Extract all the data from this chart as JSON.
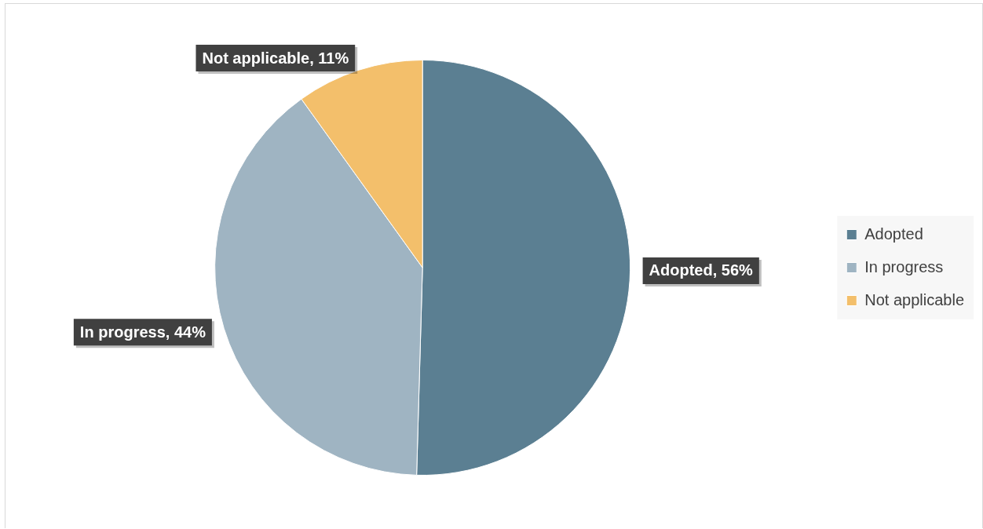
{
  "chart_data": {
    "type": "pie",
    "categories": [
      "Adopted",
      "In progress",
      "Not applicable"
    ],
    "values": [
      56,
      44,
      11
    ],
    "colors": [
      "#5b7f92",
      "#9fb4c2",
      "#f3bf6b"
    ],
    "value_labels": [
      "Adopted, 56%",
      "In progress, 44%",
      "Not applicable, 11%"
    ],
    "legend": "right"
  }
}
